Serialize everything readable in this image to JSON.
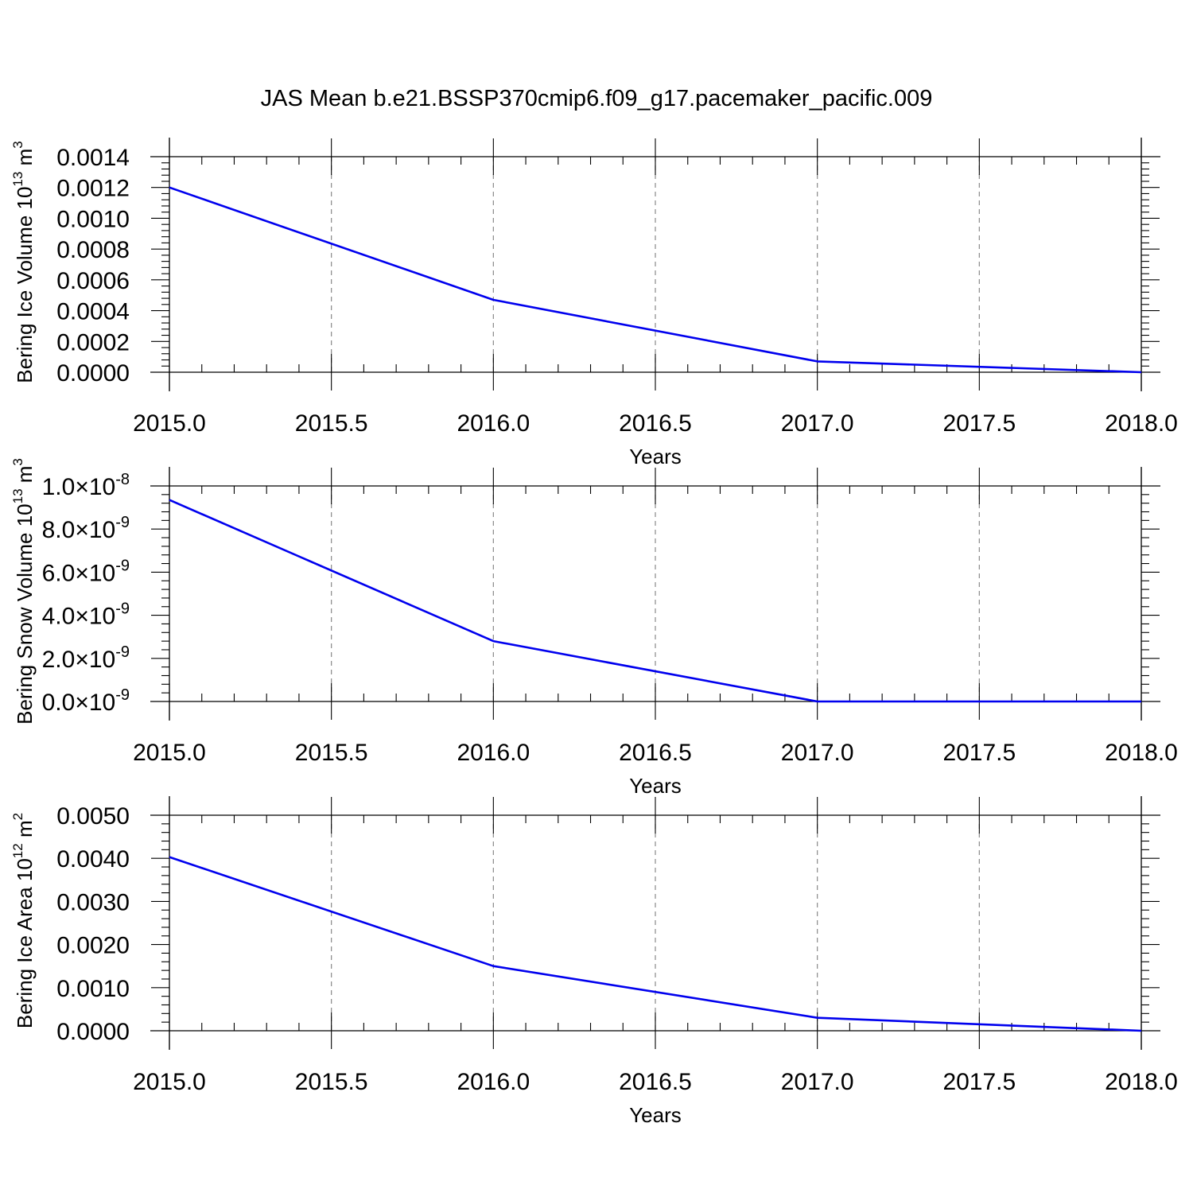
{
  "title": "JAS Mean b.e21.BSSP370cmip6.f09_g17.pacemaker_pacific.009",
  "colors": {
    "series": "#0000ee",
    "axis": "#000000",
    "grid": "#888888",
    "background": "#ffffff"
  },
  "chart_data": [
    {
      "type": "line",
      "title": "JAS Mean b.e21.BSSP370cmip6.f09_g17.pacemaker_pacific.009",
      "xlabel": "Years",
      "ylabel": {
        "text": "Bering Ice Volume 10",
        "exp": "13",
        "unit": " m",
        "unit_exp": "3"
      },
      "xlim": [
        2015.0,
        2018.0
      ],
      "ylim": [
        0.0,
        0.0014
      ],
      "xticks": [
        2015.0,
        2015.5,
        2016.0,
        2016.5,
        2017.0,
        2017.5,
        2018.0
      ],
      "xtick_labels": [
        "2015.0",
        "2015.5",
        "2016.0",
        "2016.5",
        "2017.0",
        "2017.5",
        "2018.0"
      ],
      "yticks": [
        0.0,
        0.0002,
        0.0004,
        0.0006,
        0.0008,
        0.001,
        0.0012,
        0.0014
      ],
      "ytick_labels": [
        {
          "text": "0.0000"
        },
        {
          "text": "0.0002"
        },
        {
          "text": "0.0004"
        },
        {
          "text": "0.0006"
        },
        {
          "text": "0.0008"
        },
        {
          "text": "0.0010"
        },
        {
          "text": "0.0012"
        },
        {
          "text": "0.0014"
        }
      ],
      "grid": "vertical dashed",
      "x": [
        2015,
        2016,
        2017,
        2018
      ],
      "series": [
        {
          "values": [
            0.0012,
            0.00047,
            7e-05,
            0.0
          ]
        }
      ]
    },
    {
      "type": "line",
      "xlabel": "Years",
      "ylabel": {
        "text": "Bering Snow Volume 10",
        "exp": "13",
        "unit": " m",
        "unit_exp": "3"
      },
      "xlim": [
        2015.0,
        2018.0
      ],
      "ylim": [
        0.0,
        1e-08
      ],
      "xticks": [
        2015.0,
        2015.5,
        2016.0,
        2016.5,
        2017.0,
        2017.5,
        2018.0
      ],
      "xtick_labels": [
        "2015.0",
        "2015.5",
        "2016.0",
        "2016.5",
        "2017.0",
        "2017.5",
        "2018.0"
      ],
      "yticks": [
        0.0,
        2e-09,
        4e-09,
        6e-09,
        8e-09,
        1e-08
      ],
      "ytick_labels": [
        {
          "text": "0.0",
          "exp": "-9"
        },
        {
          "text": "2.0",
          "exp": "-9"
        },
        {
          "text": "4.0",
          "exp": "-9"
        },
        {
          "text": "6.0",
          "exp": "-9"
        },
        {
          "text": "8.0",
          "exp": "-9"
        },
        {
          "text": "1.0",
          "exp": "-8"
        }
      ],
      "grid": "vertical dashed",
      "x": [
        2015,
        2016,
        2017,
        2018
      ],
      "series": [
        {
          "values": [
            9.35e-09,
            2.8e-09,
            0.0,
            0.0
          ]
        }
      ]
    },
    {
      "type": "line",
      "xlabel": "Years",
      "ylabel": {
        "text": "Bering Ice Area 10",
        "exp": "12",
        "unit": " m",
        "unit_exp": "2"
      },
      "xlim": [
        2015.0,
        2018.0
      ],
      "ylim": [
        0.0,
        0.005
      ],
      "xticks": [
        2015.0,
        2015.5,
        2016.0,
        2016.5,
        2017.0,
        2017.5,
        2018.0
      ],
      "xtick_labels": [
        "2015.0",
        "2015.5",
        "2016.0",
        "2016.5",
        "2017.0",
        "2017.5",
        "2018.0"
      ],
      "yticks": [
        0.0,
        0.001,
        0.002,
        0.003,
        0.004,
        0.005
      ],
      "ytick_labels": [
        {
          "text": "0.0000"
        },
        {
          "text": "0.0010"
        },
        {
          "text": "0.0020"
        },
        {
          "text": "0.0030"
        },
        {
          "text": "0.0040"
        },
        {
          "text": "0.0050"
        }
      ],
      "grid": "vertical dashed",
      "x": [
        2015,
        2016,
        2017,
        2018
      ],
      "series": [
        {
          "values": [
            0.00403,
            0.0015,
            0.0003,
            0.0
          ]
        }
      ]
    }
  ]
}
